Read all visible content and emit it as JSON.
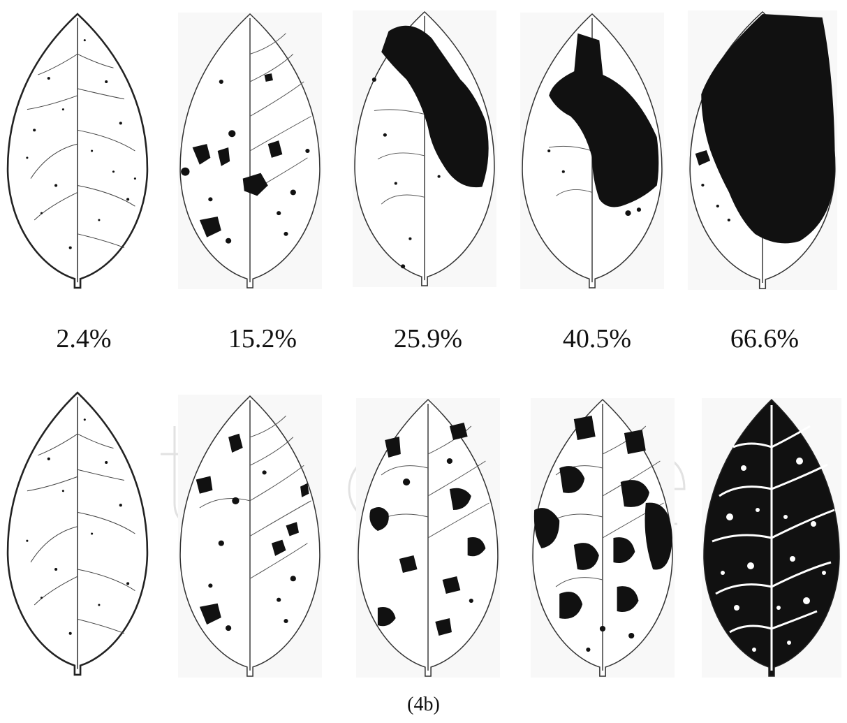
{
  "figure": {
    "caption": "(4b)",
    "severity_labels": [
      "2.4%",
      "15.2%",
      "25.9%",
      "40.5%",
      "66.6%"
    ],
    "rows": [
      {
        "name": "clustered-lesions",
        "leaves": [
          {
            "severity": "2.4%",
            "pattern": "scattered-specks"
          },
          {
            "severity": "15.2%",
            "pattern": "scattered-spots"
          },
          {
            "severity": "25.9%",
            "pattern": "diagonal-band"
          },
          {
            "severity": "40.5%",
            "pattern": "large-patch"
          },
          {
            "severity": "66.6%",
            "pattern": "dominant-patch"
          }
        ]
      },
      {
        "name": "dispersed-lesions",
        "leaves": [
          {
            "severity": "2.4%",
            "pattern": "scattered-specks"
          },
          {
            "severity": "15.2%",
            "pattern": "scattered-spots"
          },
          {
            "severity": "25.9%",
            "pattern": "distributed-blotches"
          },
          {
            "severity": "40.5%",
            "pattern": "distributed-blotches"
          },
          {
            "severity": "66.6%",
            "pattern": "dense-mosaic"
          }
        ]
      }
    ],
    "colors": {
      "outline": "#222222",
      "lesion": "#111111",
      "background": "#ffffff",
      "panel_tint": "#f7f7f7",
      "watermark": "#dddddd"
    }
  }
}
